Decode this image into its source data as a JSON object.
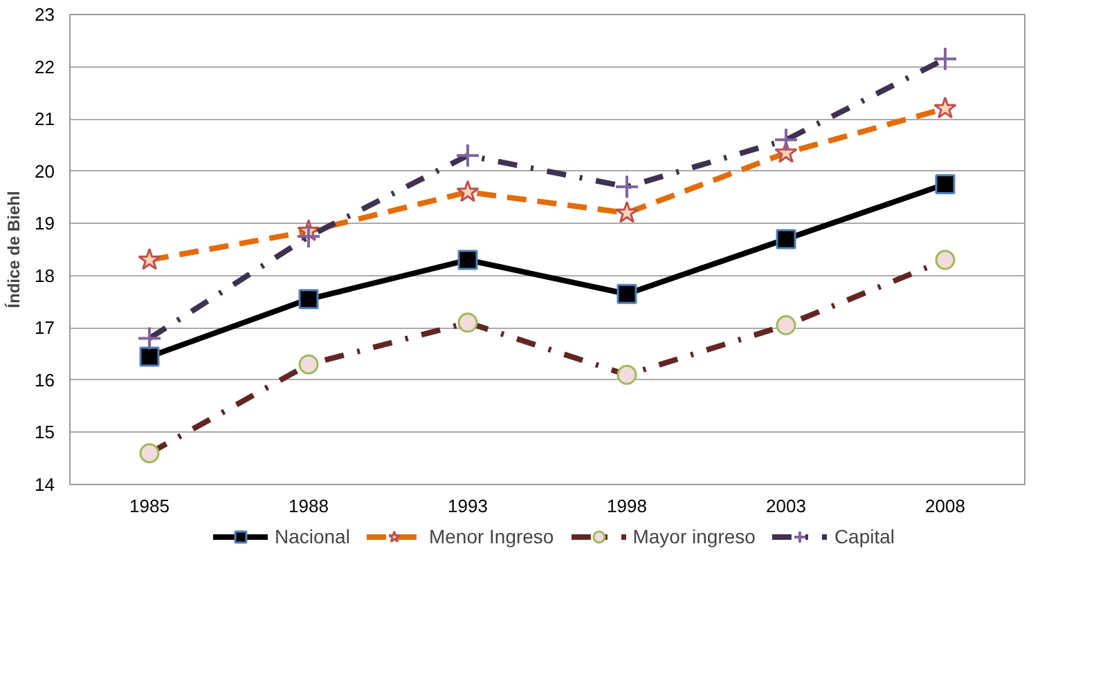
{
  "chart_data": {
    "type": "line",
    "ylabel": "Índice de Biehl",
    "categories": [
      "1985",
      "1988",
      "1993",
      "1998",
      "2003",
      "2008"
    ],
    "series": [
      {
        "name": "Nacional",
        "color": "#000000",
        "values": [
          16.45,
          17.55,
          18.3,
          17.65,
          18.7,
          19.75
        ],
        "marker": "square",
        "line_style": "solid"
      },
      {
        "name": "Menor Ingreso",
        "color": "#e36c0a",
        "values": [
          18.3,
          18.85,
          19.6,
          19.2,
          20.35,
          21.2
        ],
        "marker": "star",
        "line_style": "dashed"
      },
      {
        "name": "Mayor ingreso",
        "color": "#632523",
        "values": [
          14.6,
          16.3,
          17.1,
          16.1,
          17.05,
          18.3
        ],
        "marker": "circle",
        "line_style": "dashdot"
      },
      {
        "name": "Capital",
        "color": "#3f3151",
        "values": [
          16.8,
          18.75,
          20.3,
          19.7,
          20.6,
          22.15
        ],
        "marker": "cross",
        "line_style": "dashdot"
      }
    ],
    "ylim": [
      14,
      23
    ],
    "yticks": [
      14,
      15,
      16,
      17,
      18,
      19,
      20,
      21,
      22,
      23
    ],
    "grid": "y",
    "legend": "bottom"
  }
}
